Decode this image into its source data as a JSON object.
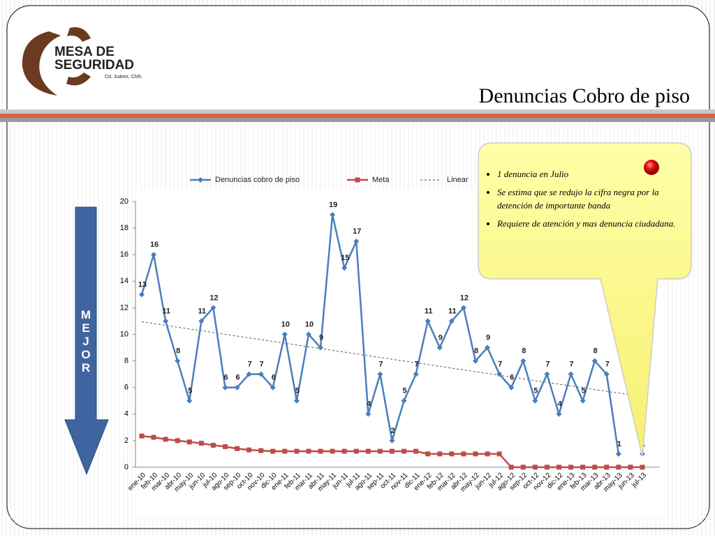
{
  "header": {
    "logo_line1": "MESA DE",
    "logo_line2": "SEGURIDAD",
    "logo_city": "Cd. Juárez, Chih.",
    "title": "Denuncias Cobro de piso"
  },
  "arrow_label": "MEJOR",
  "callout": {
    "bullets": [
      "1 denuncia en Julio",
      "Se estima que se redujo la cifra negra por la detención de importante banda",
      "Requiere de atención y mas denuncia ciudadana."
    ]
  },
  "chart_data": {
    "type": "line",
    "categories": [
      "ene-10",
      "feb-10",
      "mar-10",
      "abr-10",
      "may-10",
      "jun-10",
      "jul-10",
      "ago-10",
      "sep-10",
      "oct-10",
      "nov-10",
      "dic-10",
      "ene-11",
      "feb-11",
      "mar-11",
      "abr-11",
      "may-11",
      "jun-11",
      "jul-11",
      "ago-11",
      "sep-11",
      "oct-11",
      "nov-11",
      "dic-11",
      "ene-12",
      "feb-12",
      "mar-12",
      "abr-12",
      "may-12",
      "jun-12",
      "jul-12",
      "ago-12",
      "sep-12",
      "oct-12",
      "nov-12",
      "dic-12",
      "ene-13",
      "feb-13",
      "mar-13",
      "abr-13",
      "may-13",
      "jun-13",
      "jul-13"
    ],
    "series": [
      {
        "name": "Denuncias cobro de piso",
        "color": "#4a7ebb",
        "marker": "diamond",
        "data_labels": true,
        "values": [
          13,
          16,
          11,
          8,
          5,
          11,
          12,
          6,
          6,
          7,
          7,
          6,
          10,
          5,
          10,
          9,
          19,
          15,
          17,
          4,
          7,
          2,
          5,
          7,
          11,
          9,
          11,
          12,
          8,
          9,
          7,
          6,
          8,
          5,
          7,
          4,
          7,
          5,
          8,
          7,
          1,
          null,
          1
        ]
      },
      {
        "name": "Meta",
        "color": "#be4b48",
        "marker": "square",
        "data_labels": false,
        "values": [
          2.35,
          2.25,
          2.1,
          2.0,
          1.9,
          1.8,
          1.65,
          1.55,
          1.4,
          1.3,
          1.25,
          1.2,
          1.2,
          1.2,
          1.2,
          1.2,
          1.2,
          1.2,
          1.2,
          1.2,
          1.2,
          1.2,
          1.2,
          1.2,
          1.0,
          1.0,
          1.0,
          1.0,
          1.0,
          1.0,
          1.0,
          0,
          0,
          0,
          0,
          0,
          0,
          0,
          0,
          0,
          0,
          0,
          0
        ]
      }
    ],
    "trendline": {
      "name": "Linear",
      "color": "#555555",
      "of_series": 0
    },
    "ylim": [
      0,
      20
    ],
    "yticks": [
      0,
      2,
      4,
      6,
      8,
      10,
      12,
      14,
      16,
      18,
      20
    ],
    "grid": false
  }
}
